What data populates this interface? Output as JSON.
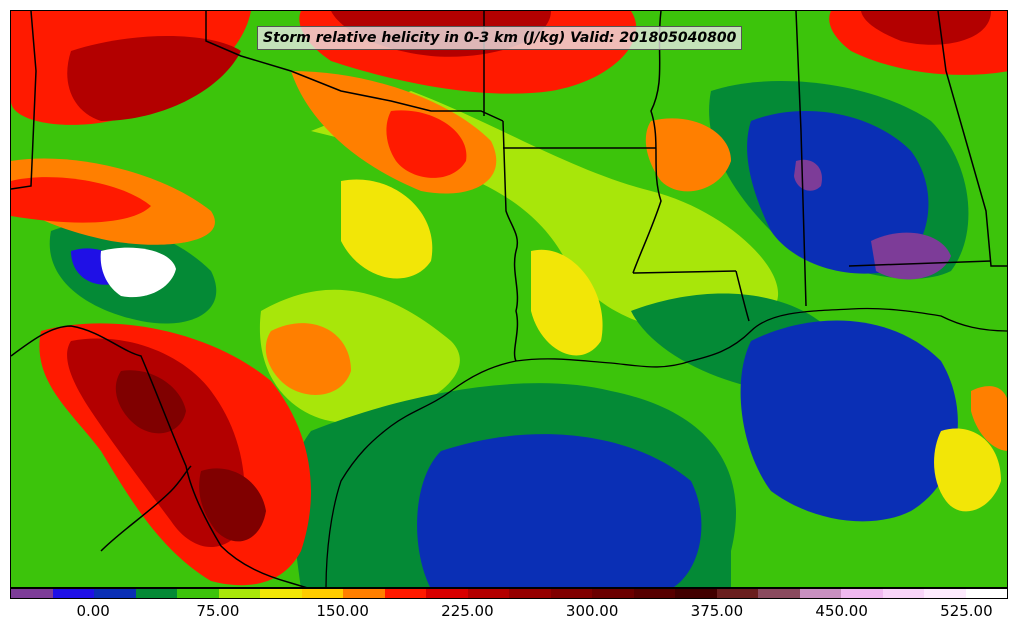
{
  "title": "Storm relative helicity in 0-3 km (J/kg) Valid: 201805040800",
  "colorbar": {
    "colors": [
      "#7d3c98",
      "#1f10e6",
      "#0a2fb5",
      "#048a36",
      "#3cc40b",
      "#a8e60a",
      "#f2e607",
      "#ffcc00",
      "#ff7f00",
      "#ff1a00",
      "#d80000",
      "#b30000",
      "#960000",
      "#800000",
      "#6b0000",
      "#560000",
      "#410000",
      "#6a1e1e",
      "#8a4a5e",
      "#c890c0",
      "#f0b8f0",
      "#f8d4f8",
      "#fdeafd",
      "#ffffff"
    ],
    "ticks": [
      {
        "value": 0,
        "label": "0.00"
      },
      {
        "value": 75,
        "label": "75.00"
      },
      {
        "value": 150,
        "label": "150.00"
      },
      {
        "value": 225,
        "label": "225.00"
      },
      {
        "value": 300,
        "label": "300.00"
      },
      {
        "value": 375,
        "label": "375.00"
      },
      {
        "value": 450,
        "label": "450.00"
      },
      {
        "value": 525,
        "label": "525.00"
      }
    ],
    "range": [
      -50,
      550
    ]
  },
  "regions": {
    "base_fill": "#3cc40b",
    "gulf_fill": "#0a2fb5",
    "high_fill": "#b30000"
  }
}
